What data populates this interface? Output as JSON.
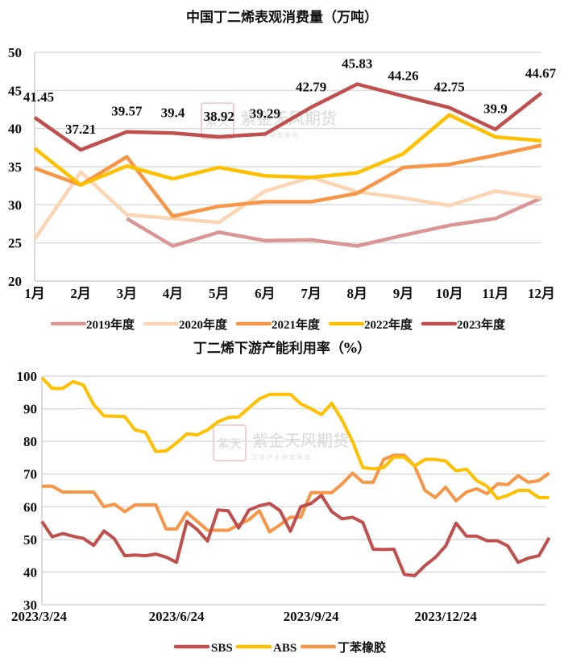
{
  "chart_data": [
    {
      "type": "line",
      "title": "中国丁二烯表观消费量（万吨）",
      "xlabel": "",
      "ylabel": "",
      "categories": [
        "1月",
        "2月",
        "3月",
        "4月",
        "5月",
        "6月",
        "7月",
        "8月",
        "9月",
        "10月",
        "11月",
        "12月"
      ],
      "ylim": [
        20,
        50
      ],
      "yticks": [
        20,
        25,
        30,
        35,
        40,
        45,
        50
      ],
      "grid": true,
      "legend_position": "bottom",
      "series": [
        {
          "name": "2019年度",
          "color": "#d99694",
          "values": [
            null,
            null,
            28.2,
            24.6,
            26.4,
            25.3,
            25.4,
            24.6,
            26.0,
            27.3,
            28.2,
            30.9
          ]
        },
        {
          "name": "2020年度",
          "color": "#fcd5b5",
          "values": [
            25.5,
            34.3,
            28.7,
            28.2,
            27.7,
            31.8,
            33.6,
            31.7,
            30.9,
            29.9,
            31.8,
            30.9
          ]
        },
        {
          "name": "2021年度",
          "color": "#f79646",
          "values": [
            34.8,
            32.6,
            36.3,
            28.5,
            29.8,
            30.4,
            30.4,
            31.5,
            34.9,
            35.3,
            36.5,
            37.8
          ]
        },
        {
          "name": "2022年度",
          "color": "#ffc000",
          "values": [
            37.4,
            32.6,
            35.1,
            33.4,
            34.9,
            33.8,
            33.6,
            34.2,
            36.7,
            41.8,
            38.9,
            38.4
          ]
        },
        {
          "name": "2023年度",
          "color": "#c0504d",
          "values": [
            41.45,
            37.21,
            39.57,
            39.4,
            38.92,
            39.29,
            42.79,
            45.83,
            44.26,
            42.75,
            39.9,
            44.67
          ],
          "data_labels": [
            "41.45",
            "37.21",
            "39.57",
            "39.4",
            "38.92",
            "39.29",
            "42.79",
            "45.83",
            "44.26",
            "42.75",
            "39.9",
            "44.67"
          ]
        }
      ]
    },
    {
      "type": "line",
      "title": "丁二烯下游产能利用率（%）",
      "xlabel": "",
      "ylabel": "",
      "x_tick_labels": [
        "2023/3/24",
        "2023/6/24",
        "2023/9/24",
        "2023/12/24"
      ],
      "x_tick_indices": [
        0,
        13,
        26,
        39
      ],
      "ylim": [
        30,
        100
      ],
      "yticks": [
        30,
        40,
        50,
        60,
        70,
        80,
        90,
        100
      ],
      "grid": true,
      "legend_position": "bottom",
      "series": [
        {
          "name": "SBS",
          "color": "#c0504d",
          "values": [
            55.5,
            50.8,
            51.8,
            51.0,
            50.3,
            48.2,
            52.6,
            50.2,
            45.0,
            45.2,
            45.0,
            45.5,
            44.6,
            43.0,
            55.5,
            53.0,
            49.5,
            59.0,
            58.8,
            53.5,
            59.0,
            60.3,
            61.0,
            58.8,
            52.5,
            60.0,
            61.0,
            63.5,
            58.5,
            56.3,
            56.8,
            55.2,
            47.0,
            46.9,
            47.0,
            39.3,
            38.9,
            42.0,
            44.5,
            48.0,
            55.0,
            51.0,
            51.0,
            49.6,
            49.6,
            48.0,
            43.0,
            44.3,
            45.0,
            50.5
          ]
        },
        {
          "name": "ABS",
          "color": "#ffc000",
          "values": [
            99.5,
            96.2,
            96.2,
            98.3,
            97.3,
            91.3,
            87.8,
            87.7,
            87.6,
            83.5,
            82.8,
            76.9,
            77.1,
            79.5,
            82.3,
            82.0,
            83.5,
            86.0,
            87.3,
            87.5,
            90.3,
            93.0,
            94.4,
            94.4,
            94.4,
            91.5,
            90.0,
            88.2,
            91.7,
            86.5,
            80.0,
            72.0,
            71.6,
            72.0,
            75.2,
            75.2,
            72.5,
            74.5,
            74.5,
            74.0,
            71.0,
            71.5,
            68.0,
            66.3,
            62.5,
            63.5,
            65.0,
            65.0,
            62.8,
            62.8
          ]
        },
        {
          "name": "丁苯橡胶",
          "color": "#f79646",
          "values": [
            66.3,
            66.3,
            64.5,
            64.5,
            64.5,
            64.5,
            60.0,
            60.8,
            58.5,
            60.6,
            60.6,
            60.6,
            53.2,
            53.2,
            58.2,
            55.5,
            52.8,
            52.8,
            52.8,
            54.5,
            56.0,
            58.8,
            52.3,
            54.5,
            56.8,
            56.8,
            64.3,
            64.3,
            64.3,
            67.0,
            70.3,
            67.5,
            67.5,
            74.5,
            75.8,
            75.8,
            72.5,
            65.0,
            62.8,
            66.0,
            61.8,
            64.5,
            65.5,
            64.0,
            67.0,
            66.8,
            69.5,
            67.5,
            68.0,
            70.3
          ]
        }
      ]
    }
  ],
  "watermark": {
    "brand": "紫金天风期货",
    "slogan": "立 足 产 业   研 究 驱 动",
    "seal": "紫天金风"
  }
}
